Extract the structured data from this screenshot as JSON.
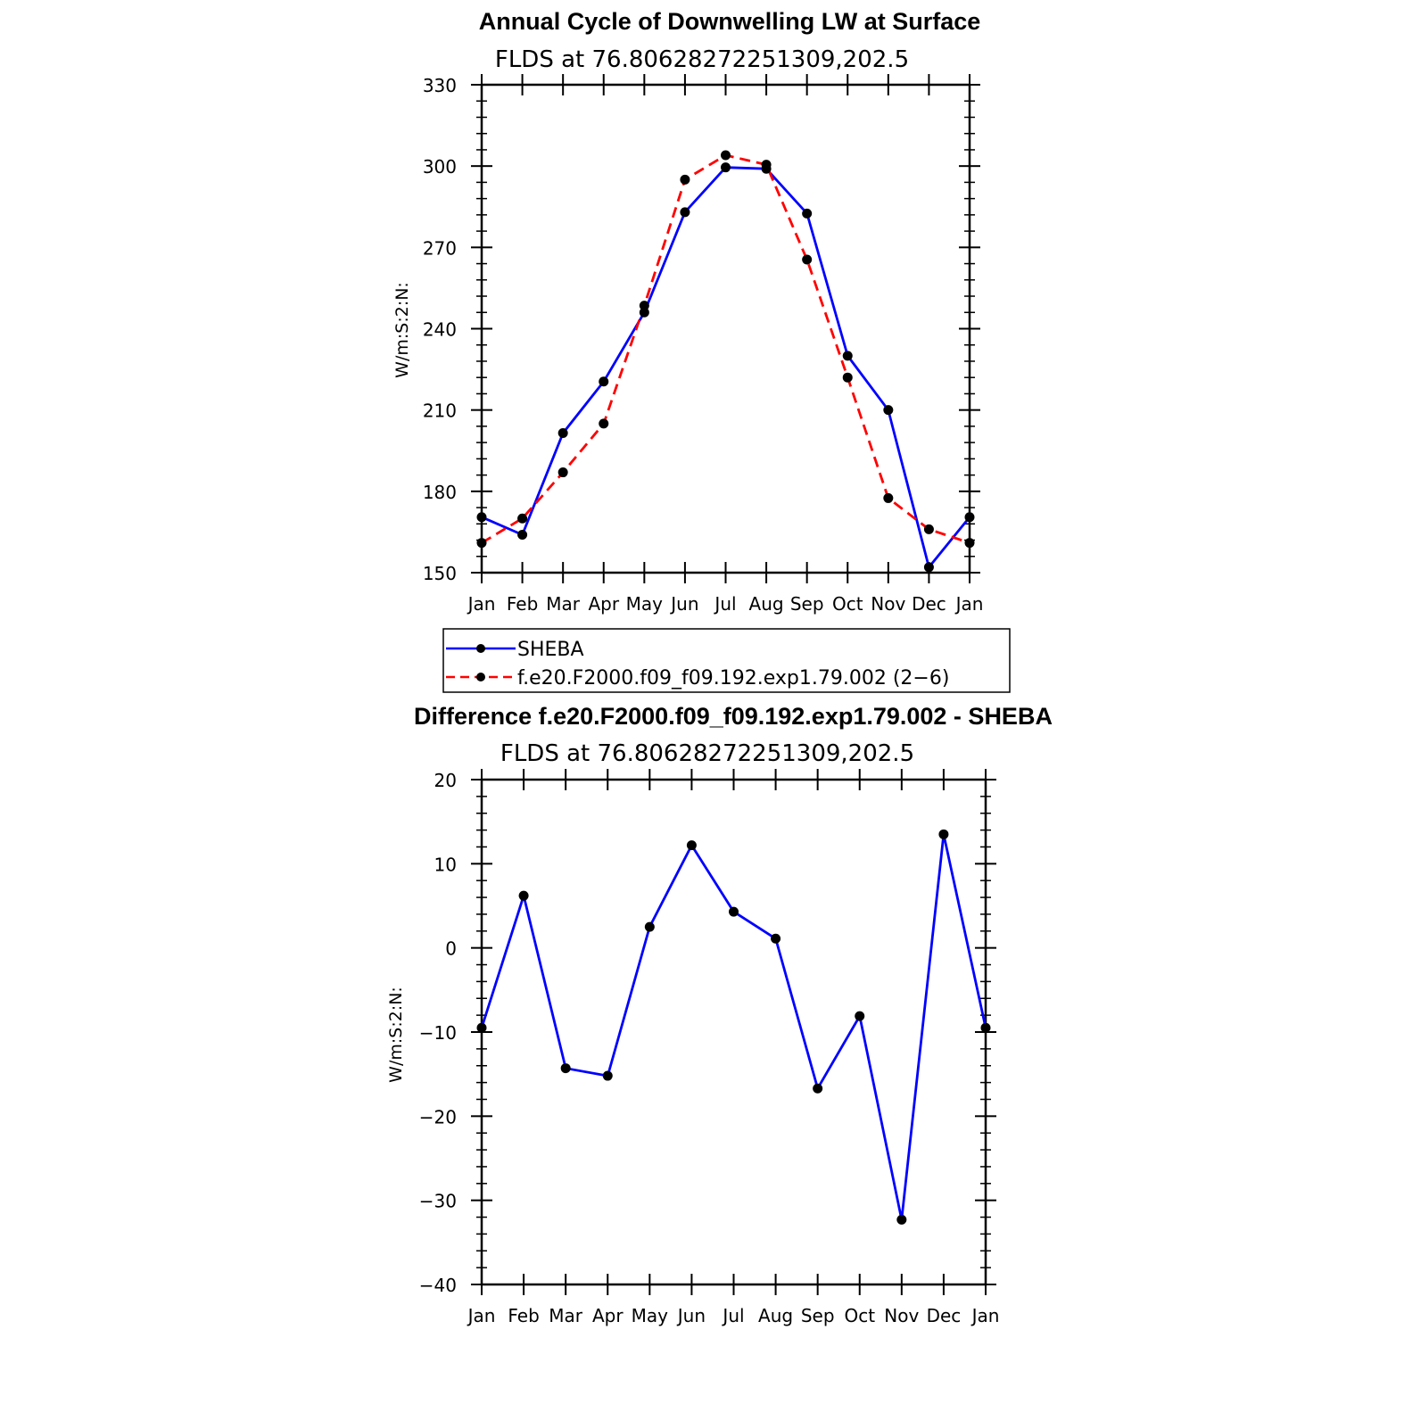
{
  "chart_data": [
    {
      "type": "line",
      "title": "Annual Cycle of Downwelling LW at Surface",
      "subtitle": "FLDS at 76.80628272251309,202.5",
      "ylabel": "W/m:S:2:N:",
      "xlabel": "",
      "categories": [
        "Jan",
        "Feb",
        "Mar",
        "Apr",
        "May",
        "Jun",
        "Jul",
        "Aug",
        "Sep",
        "Oct",
        "Nov",
        "Dec",
        "Jan"
      ],
      "ylim": [
        150,
        330
      ],
      "yticks": [
        "150",
        "180",
        "210",
        "240",
        "270",
        "300",
        "330"
      ],
      "series": [
        {
          "name": "SHEBA",
          "color": "#0000ff",
          "dash": "solid",
          "values": [
            170.5,
            164,
            201.5,
            220.5,
            246,
            283,
            299.5,
            299,
            282.5,
            230,
            210,
            152,
            170.5
          ]
        },
        {
          "name": "f.e20.F2000.f09_f09.192.exp1.79.002 (2−6)",
          "color": "#ff0000",
          "dash": "dashed",
          "values": [
            161,
            170,
            187,
            205,
            248.5,
            295,
            304,
            300.5,
            265.5,
            222,
            177.5,
            166,
            161
          ]
        }
      ],
      "legend": "below"
    },
    {
      "type": "line",
      "title": "Difference f.e20.F2000.f09_f09.192.exp1.79.002 - SHEBA",
      "subtitle": "FLDS at 76.80628272251309,202.5",
      "ylabel": "W/m:S:2:N:",
      "xlabel": "",
      "categories": [
        "Jan",
        "Feb",
        "Mar",
        "Apr",
        "May",
        "Jun",
        "Jul",
        "Aug",
        "Sep",
        "Oct",
        "Nov",
        "Dec",
        "Jan"
      ],
      "ylim": [
        -40,
        20
      ],
      "yticks": [
        "−40",
        "−30",
        "−20",
        "−10",
        "0",
        "10",
        "20"
      ],
      "series": [
        {
          "color": "#0000ff",
          "dash": "solid",
          "values": [
            -9.5,
            6.2,
            -14.3,
            -15.2,
            2.5,
            12.2,
            4.3,
            1.1,
            -16.7,
            -8.1,
            -32.3,
            13.5,
            -9.5
          ]
        }
      ]
    }
  ]
}
